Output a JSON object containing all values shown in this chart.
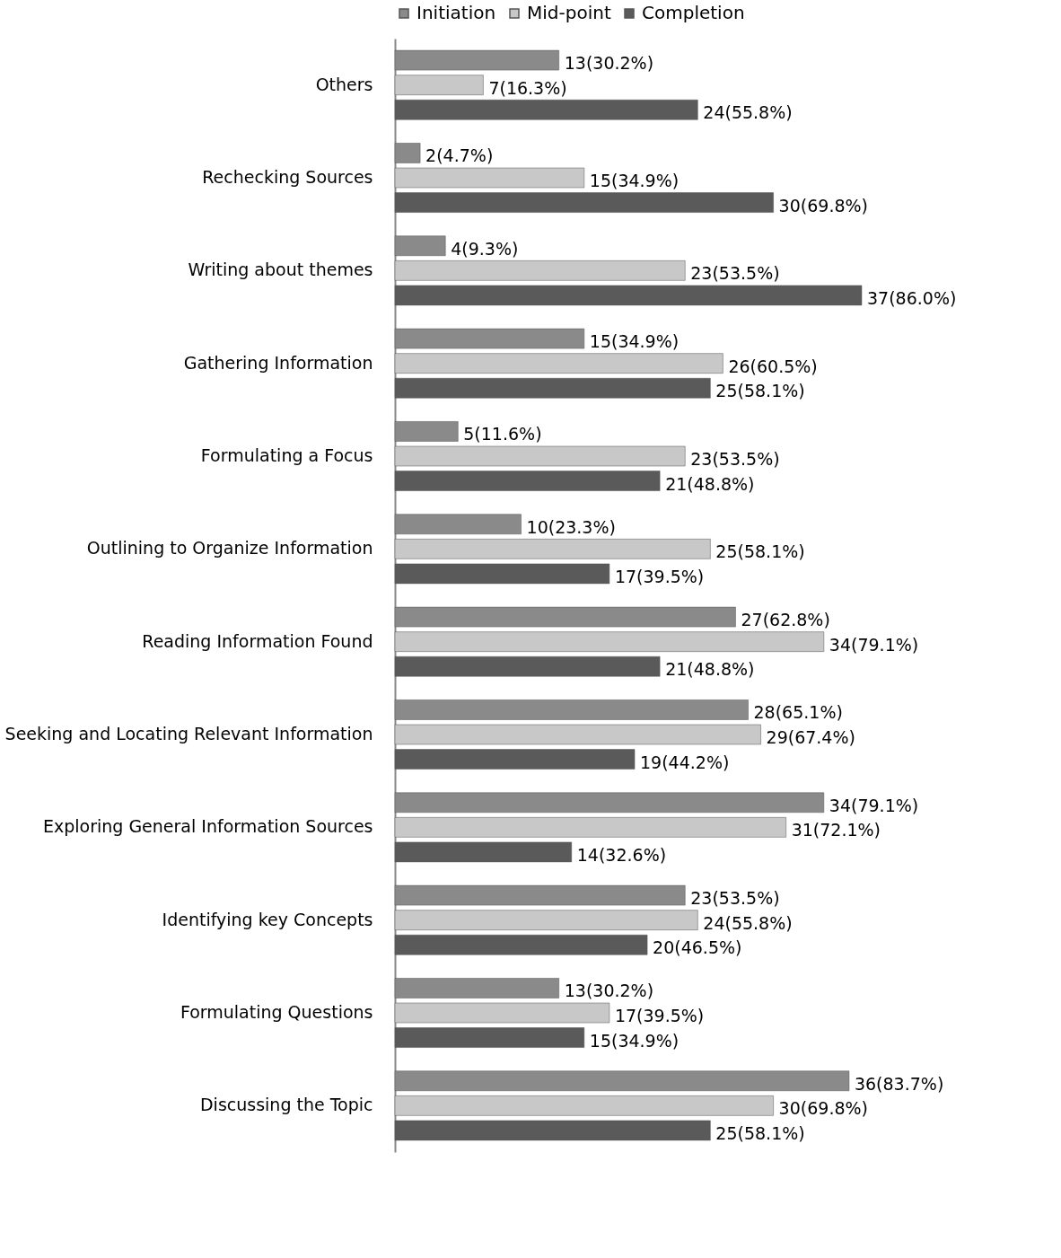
{
  "chart_data": {
    "type": "bar",
    "orientation": "horizontal",
    "legend": "top",
    "categories": [
      "Others",
      "Rechecking Sources",
      "Writing about themes",
      "Gathering Information",
      "Formulating a Focus",
      "Outlining to Organize Information",
      "Reading Information Found",
      "Seeking and Locating Relevant Information",
      "Exploring General Information Sources",
      "Identifying key Concepts",
      "Formulating Questions",
      "Discussing the Topic"
    ],
    "series": [
      {
        "name": "Initiation",
        "color": "#8a8a8a",
        "values": [
          13,
          2,
          4,
          15,
          5,
          10,
          27,
          28,
          34,
          23,
          13,
          36
        ],
        "value_labels": [
          "13(30.2%)",
          "2(4.7%)",
          "4(9.3%)",
          "15(34.9%)",
          "5(11.6%)",
          "10(23.3%)",
          "27(62.8%)",
          "28(65.1%)",
          "34(79.1%)",
          "23(53.5%)",
          "13(30.2%)",
          "36(83.7%)"
        ]
      },
      {
        "name": "Mid-point",
        "color": "#c8c8c8",
        "values": [
          7,
          15,
          23,
          26,
          23,
          25,
          34,
          29,
          31,
          24,
          17,
          30
        ],
        "value_labels": [
          "7(16.3%)",
          "15(34.9%)",
          "23(53.5%)",
          "26(60.5%)",
          "23(53.5%)",
          "25(58.1%)",
          "34(79.1%)",
          "29(67.4%)",
          "31(72.1%)",
          "24(55.8%)",
          "17(39.5%)",
          "30(69.8%)"
        ]
      },
      {
        "name": "Completion",
        "color": "#5a5a5a",
        "values": [
          24,
          30,
          37,
          25,
          21,
          17,
          21,
          19,
          14,
          20,
          15,
          25
        ],
        "value_labels": [
          "24(55.8%)",
          "30(69.8%)",
          "37(86.0%)",
          "25(58.1%)",
          "21(48.8%)",
          "17(39.5%)",
          "21(48.8%)",
          "19(44.2%)",
          "14(32.6%)",
          "20(46.5%)",
          "15(34.9%)",
          "25(58.1%)"
        ]
      }
    ]
  }
}
